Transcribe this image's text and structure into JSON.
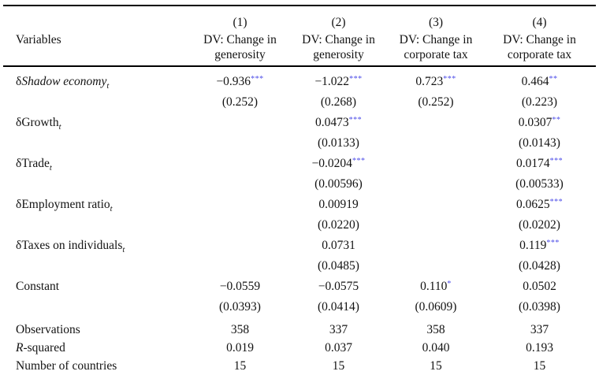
{
  "colors": {
    "star": "#4f4fe8",
    "text": "#131313",
    "rule": "#000000",
    "background": "#ffffff"
  },
  "table": {
    "header": {
      "variables_label": "Variables",
      "columns": [
        {
          "number": "(1)",
          "dv1": "DV: Change in",
          "dv2": "generosity"
        },
        {
          "number": "(2)",
          "dv1": "DV: Change in",
          "dv2": "generosity"
        },
        {
          "number": "(3)",
          "dv1": "DV: Change in",
          "dv2": "corporate tax"
        },
        {
          "number": "(4)",
          "dv1": "DV: Change in",
          "dv2": "corporate tax"
        }
      ]
    },
    "rows": [
      {
        "label_prefix": "δ",
        "label_main": "Shadow economy",
        "label_sub": "t",
        "cells": [
          {
            "coef": "−0.936",
            "stars": "***",
            "se": "(0.252)"
          },
          {
            "coef": "−1.022",
            "stars": "***",
            "se": "(0.268)"
          },
          {
            "coef": "0.723",
            "stars": "***",
            "se": "(0.252)"
          },
          {
            "coef": "0.464",
            "stars": "**",
            "se": "(0.223)"
          }
        ]
      },
      {
        "label_prefix": "δ",
        "label_main": "Growth",
        "label_sub": "t",
        "cells": [
          {
            "coef": "",
            "stars": "",
            "se": ""
          },
          {
            "coef": "0.0473",
            "stars": "***",
            "se": "(0.0133)"
          },
          {
            "coef": "",
            "stars": "",
            "se": ""
          },
          {
            "coef": "0.0307",
            "stars": "**",
            "se": "(0.0143)"
          }
        ]
      },
      {
        "label_prefix": "δ",
        "label_main": "Trade",
        "label_sub": "t",
        "cells": [
          {
            "coef": "",
            "stars": "",
            "se": ""
          },
          {
            "coef": "−0.0204",
            "stars": "***",
            "se": "(0.00596)"
          },
          {
            "coef": "",
            "stars": "",
            "se": ""
          },
          {
            "coef": "0.0174",
            "stars": "***",
            "se": "(0.00533)"
          }
        ]
      },
      {
        "label_prefix": "δ",
        "label_main": "Employment ratio",
        "label_sub": "t",
        "cells": [
          {
            "coef": "",
            "stars": "",
            "se": ""
          },
          {
            "coef": "0.00919",
            "stars": "",
            "se": "(0.0220)"
          },
          {
            "coef": "",
            "stars": "",
            "se": ""
          },
          {
            "coef": "0.0625",
            "stars": "***",
            "se": "(0.0202)"
          }
        ]
      },
      {
        "label_prefix": "δ",
        "label_main": "Taxes on individuals",
        "label_sub": "t",
        "cells": [
          {
            "coef": "",
            "stars": "",
            "se": ""
          },
          {
            "coef": "0.0731",
            "stars": "",
            "se": "(0.0485)"
          },
          {
            "coef": "",
            "stars": "",
            "se": ""
          },
          {
            "coef": "0.119",
            "stars": "***",
            "se": "(0.0428)"
          }
        ]
      },
      {
        "label_prefix": "",
        "label_main": "Constant",
        "label_sub": "",
        "cells": [
          {
            "coef": "−0.0559",
            "stars": "",
            "se": "(0.0393)"
          },
          {
            "coef": "−0.0575",
            "stars": "",
            "se": "(0.0414)"
          },
          {
            "coef": "0.110",
            "stars": "*",
            "se": "(0.0609)"
          },
          {
            "coef": "0.0502",
            "stars": "",
            "se": "(0.0398)"
          }
        ]
      }
    ],
    "summary": [
      {
        "label_italic": "",
        "label_rest": "Observations",
        "values": [
          "358",
          "337",
          "358",
          "337"
        ]
      },
      {
        "label_italic": "R",
        "label_rest": "-squared",
        "values": [
          "0.019",
          "0.037",
          "0.040",
          "0.193"
        ]
      },
      {
        "label_italic": "",
        "label_rest": "Number of countries",
        "values": [
          "15",
          "15",
          "15",
          "15"
        ]
      }
    ]
  }
}
